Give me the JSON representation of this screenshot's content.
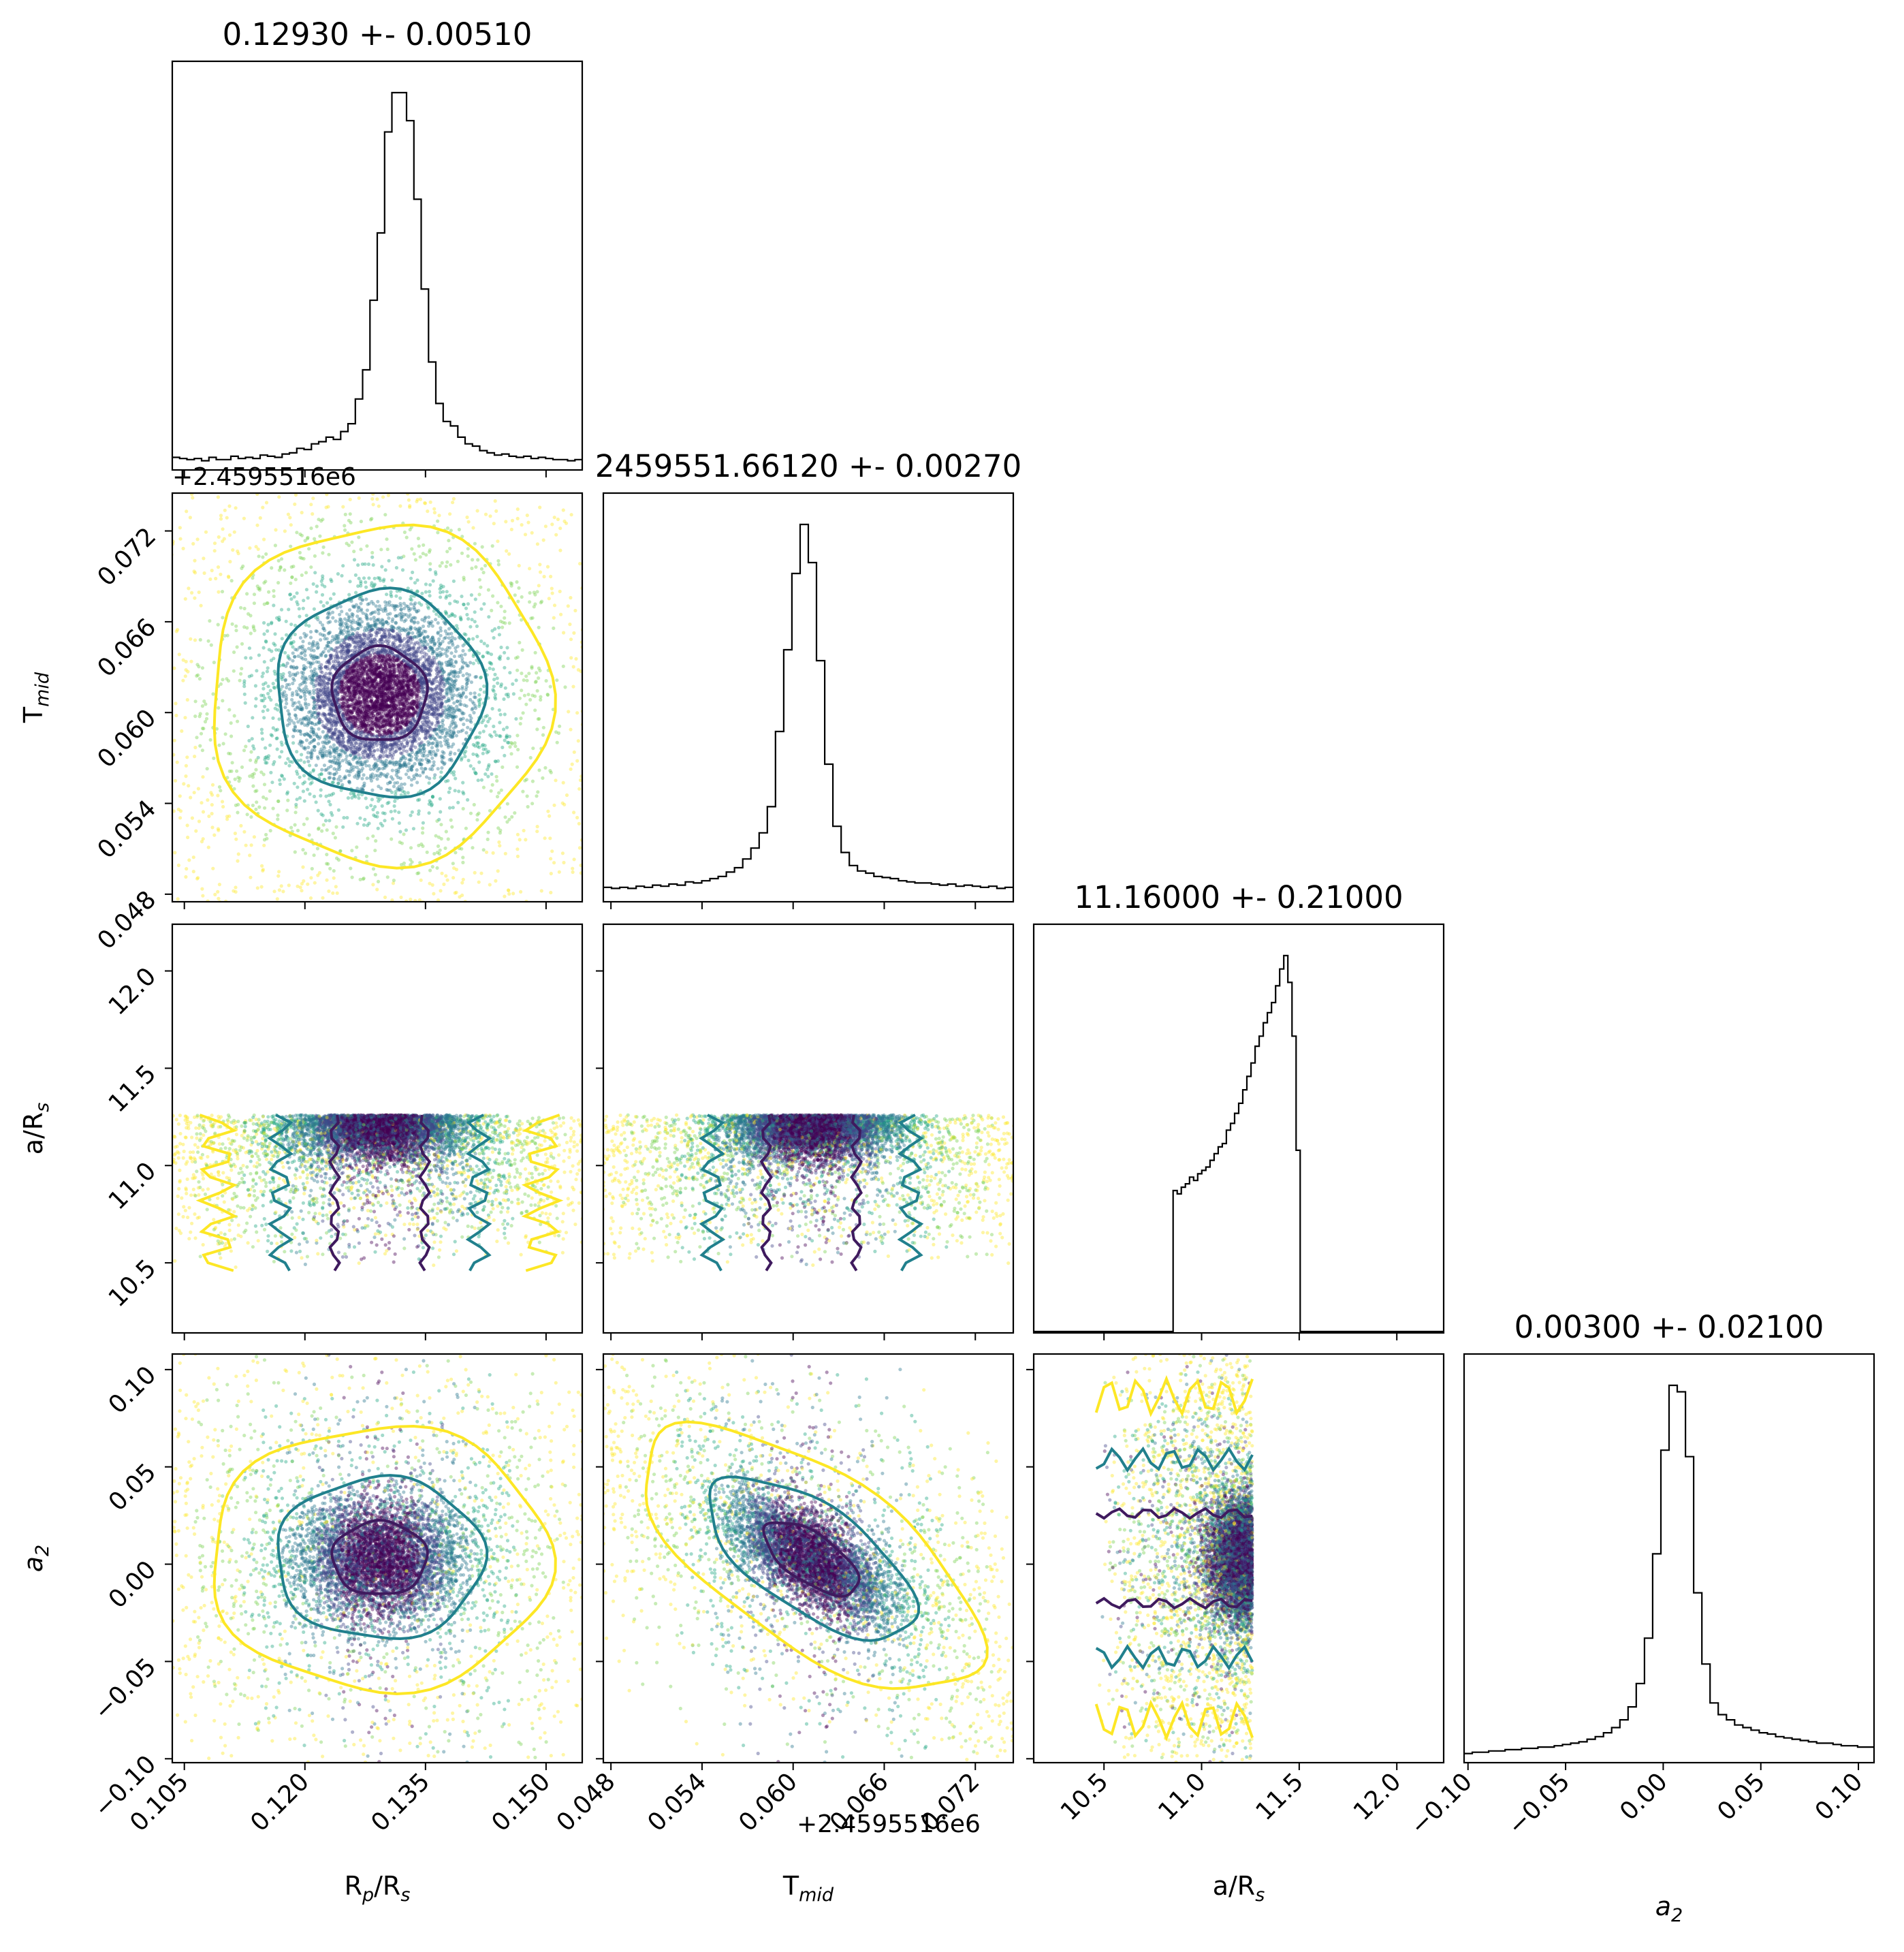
{
  "chart_data": {
    "type": "corner",
    "parameters": [
      {
        "label": "R",
        "sub": "p",
        "suffix": "/R",
        "suffix_sub": "s",
        "italic": false
      },
      {
        "label": "T",
        "sub": "mid",
        "suffix": "",
        "suffix_sub": "",
        "italic": false
      },
      {
        "label": "a/R",
        "sub": "s",
        "suffix": "",
        "suffix_sub": "",
        "italic": false
      },
      {
        "label": "a",
        "sub": "2",
        "suffix": "",
        "suffix_sub": "",
        "italic": true
      }
    ],
    "titles": [
      "0.12930 +- 0.00510",
      "2459551.66120 +- 0.00270",
      "11.16000 +- 0.21000",
      "0.00300 +- 0.02100"
    ],
    "offset_text": "+2.4595516e6",
    "offset_text_top": "+2.4595516e6",
    "ranges": [
      [
        0.1035,
        0.1545
      ],
      [
        0.0475,
        0.0745
      ],
      [
        10.14,
        12.24
      ],
      [
        -0.102,
        0.108
      ]
    ],
    "ticks": [
      [
        0.105,
        0.12,
        0.135,
        0.15
      ],
      [
        0.048,
        0.054,
        0.06,
        0.066,
        0.072
      ],
      [
        10.5,
        11.0,
        11.5,
        12.0
      ],
      [
        -0.1,
        -0.05,
        0.0,
        0.05,
        0.1
      ]
    ],
    "tick_labels": [
      [
        "0.105",
        "0.120",
        "0.135",
        "0.150"
      ],
      [
        "0.048",
        "0.054",
        "0.060",
        "0.066",
        "0.072"
      ],
      [
        "10.5",
        "11.0",
        "11.5",
        "12.0"
      ],
      [
        "−0.10",
        "−0.05",
        "0.00",
        "0.05",
        "0.10"
      ]
    ],
    "medians": [
      0.1293,
      0.0612,
      11.16,
      0.003
    ],
    "sigmas": [
      0.0051,
      0.0027,
      0.21,
      0.021
    ],
    "bounds": [
      null,
      null,
      [
        10.46,
        11.26
      ],
      null
    ],
    "correlations": {
      "1_3": -0.65
    },
    "histogram_counts": [
      [
        10,
        9,
        8,
        9,
        7,
        10,
        8,
        8,
        11,
        9,
        10,
        9,
        12,
        11,
        10,
        13,
        14,
        18,
        17,
        22,
        24,
        28,
        26,
        33,
        40,
        62,
        88,
        150,
        210,
        300,
        335,
        335,
        310,
        240,
        160,
        95,
        58,
        42,
        38,
        28,
        22,
        20,
        16,
        14,
        12,
        13,
        11,
        10,
        11,
        9,
        10,
        9,
        8,
        8,
        7,
        8
      ],
      [
        12,
        11,
        12,
        11,
        13,
        12,
        14,
        13,
        15,
        14,
        17,
        16,
        18,
        20,
        22,
        26,
        30,
        38,
        48,
        62,
        86,
        155,
        230,
        300,
        345,
        310,
        220,
        125,
        68,
        44,
        32,
        27,
        25,
        22,
        21,
        20,
        18,
        17,
        16,
        16,
        15,
        14,
        15,
        13,
        14,
        13,
        12,
        13,
        11,
        12
      ],
      [
        0,
        0,
        0,
        0,
        0,
        0,
        0,
        0,
        0,
        0,
        0,
        0,
        0,
        0,
        0,
        0,
        0,
        0,
        0,
        0,
        0,
        0,
        0,
        0,
        0,
        0,
        0,
        0,
        0,
        0,
        0,
        0,
        0,
        0,
        42,
        41,
        43,
        44,
        46,
        45,
        47,
        48,
        49,
        51,
        53,
        55,
        56,
        60,
        62,
        65,
        68,
        72,
        76,
        80,
        85,
        88,
        92,
        95,
        98,
        103,
        108,
        112,
        104,
        88,
        54,
        0,
        0,
        0,
        0,
        0,
        0,
        0,
        0,
        0,
        0,
        0,
        0,
        0,
        0,
        0,
        0,
        0,
        0,
        0,
        0,
        0,
        0,
        0,
        0,
        0,
        0,
        0,
        0,
        0,
        0,
        0,
        0,
        0,
        0,
        0
      ],
      [
        6,
        7,
        7,
        8,
        8,
        9,
        9,
        10,
        10,
        11,
        11,
        12,
        13,
        14,
        15,
        17,
        19,
        22,
        26,
        32,
        42,
        60,
        95,
        160,
        240,
        290,
        285,
        235,
        130,
        75,
        45,
        36,
        32,
        28,
        26,
        24,
        22,
        21,
        19,
        18,
        17,
        16,
        15,
        14,
        14,
        13,
        12,
        12,
        11,
        11
      ]
    ],
    "scatter_style": "density-colored samples, viridis colormap, 1/2/3-sigma contours (purple, teal, yellow)",
    "contour_colors": [
      "#3f1a5e",
      "#21808d",
      "#fde725"
    ],
    "colormap": [
      "#fde725",
      "#7ad151",
      "#22a884",
      "#2a788e",
      "#414487",
      "#440154"
    ],
    "grid": false,
    "legend": "none"
  }
}
